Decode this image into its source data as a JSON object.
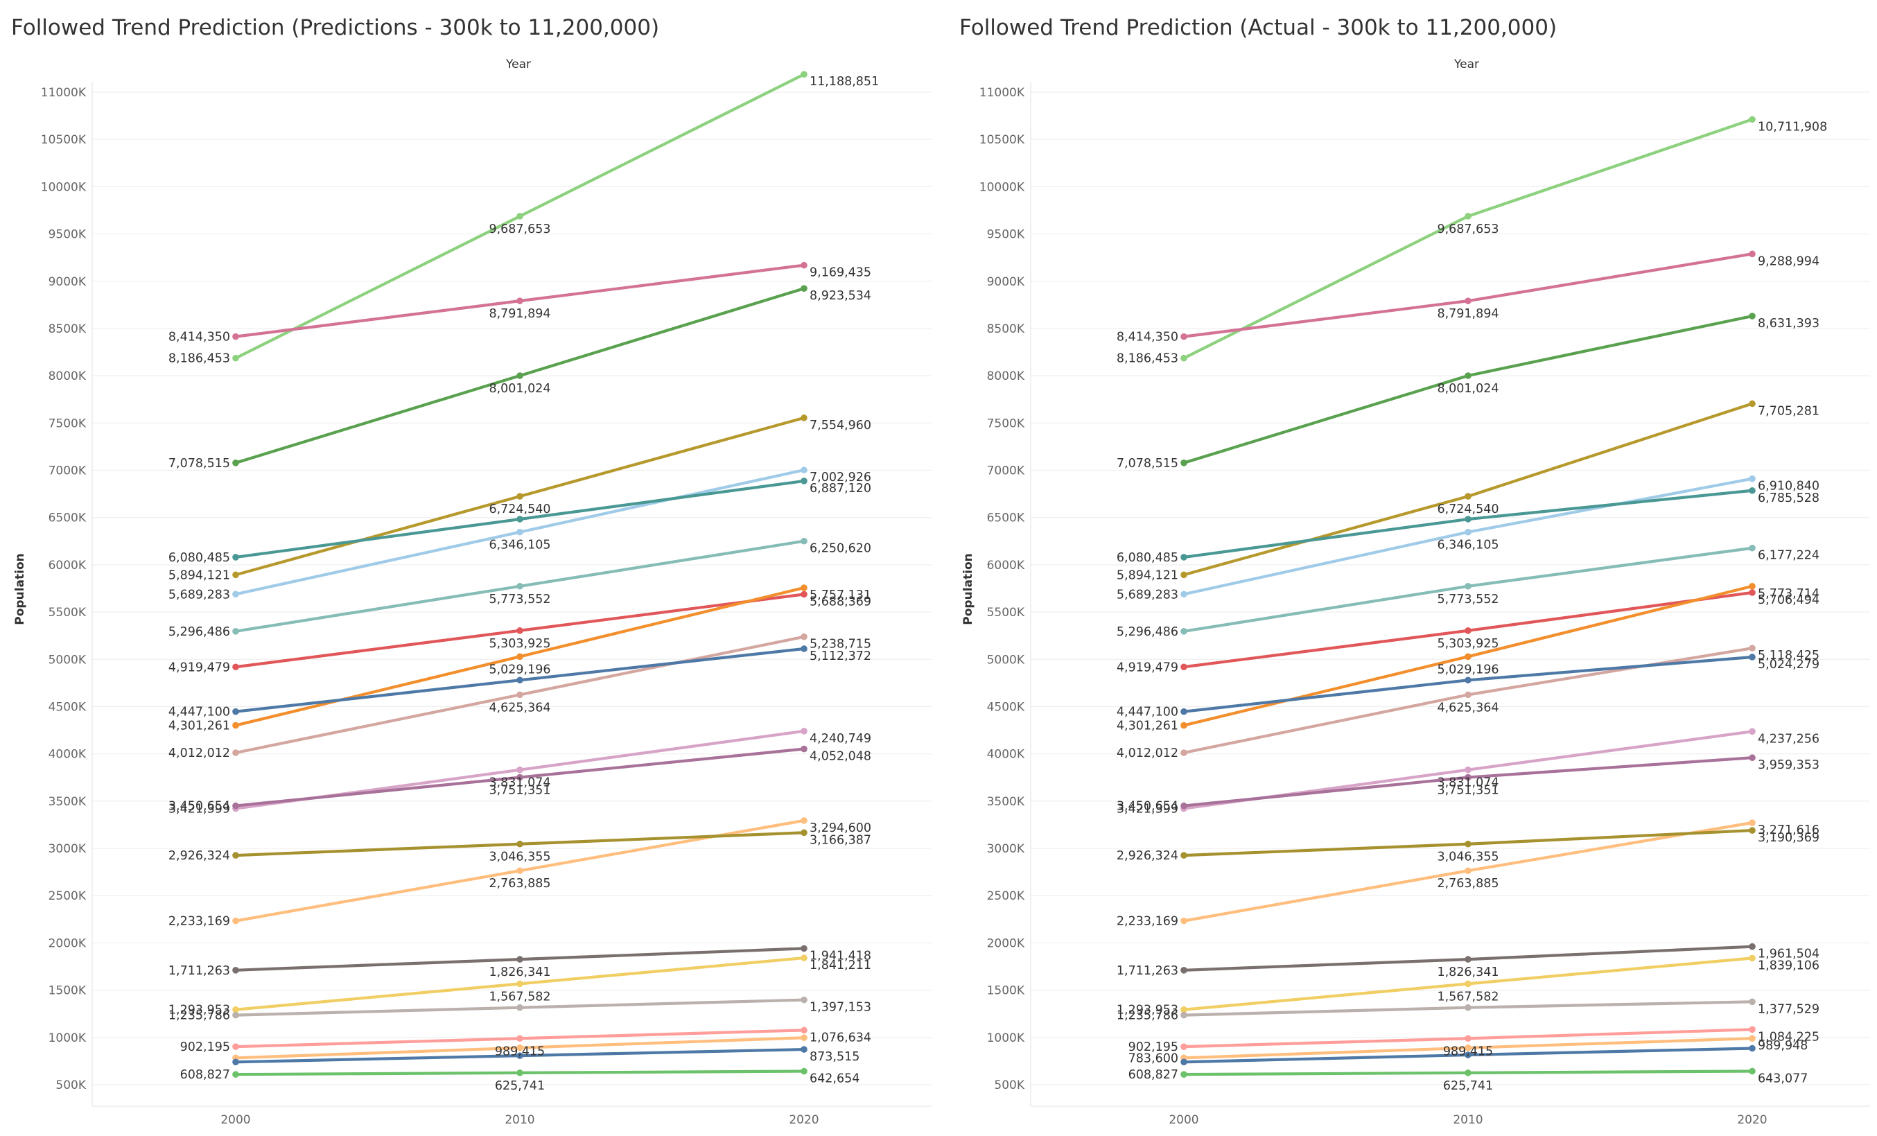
{
  "chart_data": [
    {
      "type": "line",
      "title": "Followed Trend Prediction (Predictions - 300k to 11,200,000)",
      "xlabel": "Year",
      "ylabel": "Population",
      "x": [
        2000,
        2010,
        2020
      ],
      "x_ticks": [
        "2000",
        "2010",
        "2020"
      ],
      "ylim": [
        300000,
        11200000
      ],
      "y_ticks": [
        {
          "value": 500000,
          "label": "500K"
        },
        {
          "value": 1000000,
          "label": "1000K"
        },
        {
          "value": 1500000,
          "label": "1500K"
        },
        {
          "value": 2000000,
          "label": "2000K"
        },
        {
          "value": 2500000,
          "label": "2500K"
        },
        {
          "value": 3000000,
          "label": "3000K"
        },
        {
          "value": 3500000,
          "label": "3500K"
        },
        {
          "value": 4000000,
          "label": "4000K"
        },
        {
          "value": 4500000,
          "label": "4500K"
        },
        {
          "value": 5000000,
          "label": "5000K"
        },
        {
          "value": 5500000,
          "label": "5500K"
        },
        {
          "value": 6000000,
          "label": "6000K"
        },
        {
          "value": 6500000,
          "label": "6500K"
        },
        {
          "value": 7000000,
          "label": "7000K"
        },
        {
          "value": 7500000,
          "label": "7500K"
        },
        {
          "value": 8000000,
          "label": "8000K"
        },
        {
          "value": 8500000,
          "label": "8500K"
        },
        {
          "value": 9000000,
          "label": "9000K"
        },
        {
          "value": 9500000,
          "label": "9500K"
        },
        {
          "value": 10000000,
          "label": "10000K"
        },
        {
          "value": 10500000,
          "label": "10500K"
        },
        {
          "value": 11000000,
          "label": "11000K"
        }
      ],
      "grid": true,
      "series": [
        {
          "color": "#8CD17D",
          "values": [
            8186453,
            9687653,
            11188851
          ],
          "labels": [
            "8,186,453",
            "9,687,653",
            "11,188,851"
          ]
        },
        {
          "color": "#D37295",
          "values": [
            8414350,
            8791894,
            9169435
          ],
          "labels": [
            "8,414,350",
            "8,791,894",
            "9,169,435"
          ]
        },
        {
          "color": "#59A14F",
          "values": [
            7078515,
            8001024,
            8923534
          ],
          "labels": [
            "7,078,515",
            "8,001,024",
            "8,923,534"
          ]
        },
        {
          "color": "#B6992D",
          "values": [
            5894121,
            6724540,
            7554960
          ],
          "labels": [
            "5,894,121",
            "6,724,540",
            "7,554,960"
          ]
        },
        {
          "color": "#A0CBE8",
          "values": [
            5689283,
            6346105,
            7002926
          ],
          "labels": [
            "5,689,283",
            "6,346,105",
            "7,002,926"
          ]
        },
        {
          "color": "#499894",
          "values": [
            6080485,
            6483000,
            6887120
          ],
          "labels": [
            "6,080,485",
            "",
            "6,887,120"
          ]
        },
        {
          "color": "#86BCB6",
          "values": [
            5296486,
            5773552,
            6250620
          ],
          "labels": [
            "5,296,486",
            "5,773,552",
            "6,250,620"
          ]
        },
        {
          "color": "#E15759",
          "values": [
            4919479,
            5303925,
            5688369
          ],
          "labels": [
            "4,919,479",
            "5,303,925",
            "5,688,369"
          ]
        },
        {
          "color": "#F28E2B",
          "values": [
            4301261,
            5029196,
            5757131
          ],
          "labels": [
            "4,301,261",
            "5,029,196",
            "5,757,131"
          ]
        },
        {
          "color": "#D4A6A0",
          "values": [
            4012012,
            4625364,
            5238715
          ],
          "labels": [
            "4,012,012",
            "4,625,364",
            "5,238,715"
          ]
        },
        {
          "color": "#4E79A7",
          "values": [
            4447100,
            4780000,
            5112372
          ],
          "labels": [
            "4,447,100",
            "",
            "5,112,372"
          ]
        },
        {
          "color": "#D7A4C8",
          "values": [
            3421399,
            3831074,
            4240749
          ],
          "labels": [
            "3,421,399",
            "3,831,074",
            "4,240,749"
          ]
        },
        {
          "color": "#A87199",
          "values": [
            3450654,
            3751351,
            4052048
          ],
          "labels": [
            "3,450,654",
            "3,751,351",
            "4,052,048"
          ]
        },
        {
          "color": "#FFBE7D",
          "values": [
            2233169,
            2763885,
            3294600
          ],
          "labels": [
            "2,233,169",
            "2,763,885",
            "3,294,600"
          ]
        },
        {
          "color": "#A6912F",
          "values": [
            2926324,
            3046355,
            3166387
          ],
          "labels": [
            "2,926,324",
            "3,046,355",
            "3,166,387"
          ]
        },
        {
          "color": "#79706E",
          "values": [
            1711263,
            1826341,
            1941418
          ],
          "labels": [
            "1,711,263",
            "1,826,341",
            "1,941,418"
          ]
        },
        {
          "color": "#F1CE63",
          "values": [
            1293953,
            1567582,
            1841211
          ],
          "labels": [
            "1,293,953",
            "1,567,582",
            "1,841,211"
          ]
        },
        {
          "color": "#BAB0AC",
          "values": [
            1235786,
            1316000,
            1397153
          ],
          "labels": [
            "1,235,786",
            "",
            "1,397,153"
          ]
        },
        {
          "color": "#FF9D9A",
          "values": [
            902195,
            989415,
            1076634
          ],
          "labels": [
            "902,195",
            "989,415",
            "1,076,634"
          ]
        },
        {
          "color": "#FFBE7D",
          "values": [
            783600,
            890000,
            997000
          ],
          "labels": [
            "",
            "",
            ""
          ]
        },
        {
          "color": "#4E79A7",
          "values": [
            740000,
            807000,
            873515
          ],
          "labels": [
            "",
            "",
            "873,515"
          ]
        },
        {
          "color": "#6CC26A",
          "values": [
            608827,
            625741,
            642654
          ],
          "labels": [
            "608,827",
            "625,741",
            "642,654"
          ]
        }
      ]
    },
    {
      "type": "line",
      "title": "Followed Trend Prediction (Actual - 300k to 11,200,000)",
      "xlabel": "Year",
      "ylabel": "Population",
      "x": [
        2000,
        2010,
        2020
      ],
      "x_ticks": [
        "2000",
        "2010",
        "2020"
      ],
      "ylim": [
        300000,
        11200000
      ],
      "y_ticks": [
        {
          "value": 500000,
          "label": "500K"
        },
        {
          "value": 1000000,
          "label": "1000K"
        },
        {
          "value": 1500000,
          "label": "1500K"
        },
        {
          "value": 2000000,
          "label": "2000K"
        },
        {
          "value": 2500000,
          "label": "2500K"
        },
        {
          "value": 3000000,
          "label": "3000K"
        },
        {
          "value": 3500000,
          "label": "3500K"
        },
        {
          "value": 4000000,
          "label": "4000K"
        },
        {
          "value": 4500000,
          "label": "4500K"
        },
        {
          "value": 5000000,
          "label": "5000K"
        },
        {
          "value": 5500000,
          "label": "5500K"
        },
        {
          "value": 6000000,
          "label": "6000K"
        },
        {
          "value": 6500000,
          "label": "6500K"
        },
        {
          "value": 7000000,
          "label": "7000K"
        },
        {
          "value": 7500000,
          "label": "7500K"
        },
        {
          "value": 8000000,
          "label": "8000K"
        },
        {
          "value": 8500000,
          "label": "8500K"
        },
        {
          "value": 9000000,
          "label": "9000K"
        },
        {
          "value": 9500000,
          "label": "9500K"
        },
        {
          "value": 10000000,
          "label": "10000K"
        },
        {
          "value": 10500000,
          "label": "10500K"
        },
        {
          "value": 11000000,
          "label": "11000K"
        }
      ],
      "grid": true,
      "series": [
        {
          "color": "#8CD17D",
          "values": [
            8186453,
            9687653,
            10711908
          ],
          "labels": [
            "8,186,453",
            "9,687,653",
            "10,711,908"
          ]
        },
        {
          "color": "#D37295",
          "values": [
            8414350,
            8791894,
            9288994
          ],
          "labels": [
            "8,414,350",
            "8,791,894",
            "9,288,994"
          ]
        },
        {
          "color": "#59A14F",
          "values": [
            7078515,
            8001024,
            8631393
          ],
          "labels": [
            "7,078,515",
            "8,001,024",
            "8,631,393"
          ]
        },
        {
          "color": "#B6992D",
          "values": [
            5894121,
            6724540,
            7705281
          ],
          "labels": [
            "5,894,121",
            "6,724,540",
            "7,705,281"
          ]
        },
        {
          "color": "#A0CBE8",
          "values": [
            5689283,
            6346105,
            6910840
          ],
          "labels": [
            "5,689,283",
            "6,346,105",
            "6,910,840"
          ]
        },
        {
          "color": "#499894",
          "values": [
            6080485,
            6483000,
            6785528
          ],
          "labels": [
            "6,080,485",
            "",
            "6,785,528"
          ]
        },
        {
          "color": "#86BCB6",
          "values": [
            5296486,
            5773552,
            6177224
          ],
          "labels": [
            "5,296,486",
            "5,773,552",
            "6,177,224"
          ]
        },
        {
          "color": "#E15759",
          "values": [
            4919479,
            5303925,
            5706494
          ],
          "labels": [
            "4,919,479",
            "5,303,925",
            "5,706,494"
          ]
        },
        {
          "color": "#F28E2B",
          "values": [
            4301261,
            5029196,
            5773714
          ],
          "labels": [
            "4,301,261",
            "5,029,196",
            "5,773,714"
          ]
        },
        {
          "color": "#D4A6A0",
          "values": [
            4012012,
            4625364,
            5118425
          ],
          "labels": [
            "4,012,012",
            "4,625,364",
            "5,118,425"
          ]
        },
        {
          "color": "#4E79A7",
          "values": [
            4447100,
            4780000,
            5024279
          ],
          "labels": [
            "4,447,100",
            "",
            "5,024,279"
          ]
        },
        {
          "color": "#D7A4C8",
          "values": [
            3421399,
            3831074,
            4237256
          ],
          "labels": [
            "3,421,399",
            "3,831,074",
            "4,237,256"
          ]
        },
        {
          "color": "#A87199",
          "values": [
            3450654,
            3751351,
            3959353
          ],
          "labels": [
            "3,450,654",
            "3,751,351",
            "3,959,353"
          ]
        },
        {
          "color": "#FFBE7D",
          "values": [
            2233169,
            2763885,
            3271616
          ],
          "labels": [
            "2,233,169",
            "2,763,885",
            "3,271,616"
          ]
        },
        {
          "color": "#A6912F",
          "values": [
            2926324,
            3046355,
            3190369
          ],
          "labels": [
            "2,926,324",
            "3,046,355",
            "3,190,369"
          ]
        },
        {
          "color": "#79706E",
          "values": [
            1711263,
            1826341,
            1961504
          ],
          "labels": [
            "1,711,263",
            "1,826,341",
            "1,961,504"
          ]
        },
        {
          "color": "#F1CE63",
          "values": [
            1293953,
            1567582,
            1839106
          ],
          "labels": [
            "1,293,953",
            "1,567,582",
            "1,839,106"
          ]
        },
        {
          "color": "#BAB0AC",
          "values": [
            1235786,
            1316000,
            1377529
          ],
          "labels": [
            "1,235,786",
            "",
            "1,377,529"
          ]
        },
        {
          "color": "#FF9D9A",
          "values": [
            902195,
            989415,
            1084225
          ],
          "labels": [
            "902,195",
            "989,415",
            "1,084,225"
          ]
        },
        {
          "color": "#FFBE7D",
          "values": [
            783600,
            890000,
            989948
          ],
          "labels": [
            "783,600",
            "",
            "989,948"
          ]
        },
        {
          "color": "#4E79A7",
          "values": [
            740000,
            815000,
            885000
          ],
          "labels": [
            "",
            "",
            ""
          ]
        },
        {
          "color": "#6CC26A",
          "values": [
            608827,
            625741,
            643077
          ],
          "labels": [
            "608,827",
            "625,741",
            "643,077"
          ]
        }
      ]
    }
  ]
}
